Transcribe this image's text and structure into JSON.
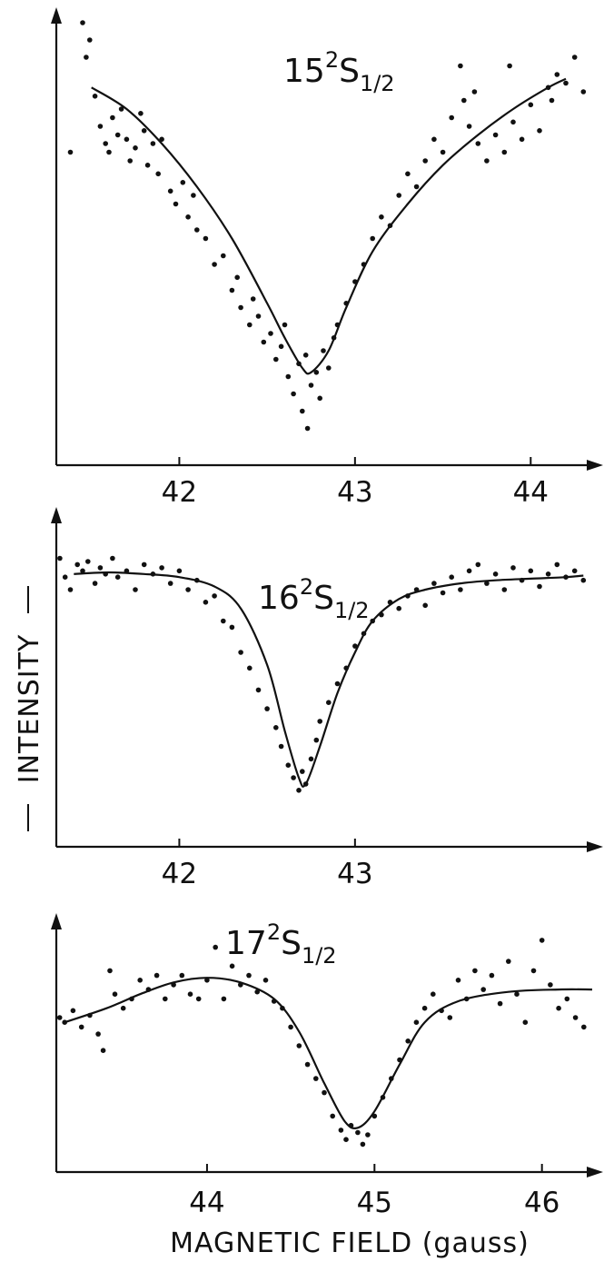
{
  "figure": {
    "ylabel": "INTENSITY",
    "xlabel": "MAGNETIC FIELD (gauss)"
  },
  "chart_data": [
    {
      "type": "scatter",
      "title": "15²S1/2",
      "title_main": "15",
      "title_sup": "2",
      "title_letter": "S",
      "title_sub": "1/2",
      "xlabel": "",
      "ylabel": "INTENSITY",
      "xlim": [
        41.3,
        44.35
      ],
      "ylim": [
        0,
        1
      ],
      "xticks": [
        42,
        43,
        44
      ],
      "xtick_labels": [
        "42",
        "43",
        "44"
      ],
      "fit_curve": {
        "x": [
          41.5,
          41.7,
          41.9,
          42.1,
          42.3,
          42.5,
          42.6,
          42.7,
          42.75,
          42.85,
          42.95,
          43.1,
          43.3,
          43.5,
          43.7,
          43.9,
          44.1,
          44.2
        ],
        "y": [
          0.85,
          0.8,
          0.72,
          0.62,
          0.5,
          0.35,
          0.27,
          0.2,
          0.19,
          0.24,
          0.34,
          0.47,
          0.58,
          0.67,
          0.74,
          0.8,
          0.85,
          0.87
        ]
      },
      "points": {
        "x": [
          41.38,
          41.45,
          41.47,
          41.49,
          41.52,
          41.55,
          41.58,
          41.6,
          41.62,
          41.65,
          41.67,
          41.7,
          41.72,
          41.75,
          41.78,
          41.8,
          41.82,
          41.85,
          41.88,
          41.9,
          41.95,
          41.98,
          42.02,
          42.05,
          42.08,
          42.1,
          42.15,
          42.2,
          42.25,
          42.3,
          42.33,
          42.35,
          42.4,
          42.42,
          42.45,
          42.48,
          42.52,
          42.55,
          42.58,
          42.6,
          42.62,
          42.65,
          42.68,
          42.7,
          42.72,
          42.73,
          42.75,
          42.78,
          42.8,
          42.82,
          42.85,
          42.88,
          42.9,
          42.95,
          43.0,
          43.05,
          43.1,
          43.15,
          43.2,
          43.25,
          43.3,
          43.35,
          43.4,
          43.45,
          43.5,
          43.55,
          43.6,
          43.62,
          43.65,
          43.68,
          43.7,
          43.75,
          43.8,
          43.85,
          43.88,
          43.9,
          43.95,
          44.0,
          44.05,
          44.1,
          44.12,
          44.15,
          44.2,
          44.25,
          44.3
        ],
        "y": [
          0.7,
          1.0,
          0.92,
          0.96,
          0.83,
          0.76,
          0.72,
          0.7,
          0.78,
          0.74,
          0.8,
          0.73,
          0.68,
          0.71,
          0.79,
          0.75,
          0.67,
          0.72,
          0.65,
          0.73,
          0.61,
          0.58,
          0.63,
          0.55,
          0.6,
          0.52,
          0.5,
          0.44,
          0.46,
          0.38,
          0.41,
          0.34,
          0.3,
          0.36,
          0.32,
          0.26,
          0.28,
          0.22,
          0.25,
          0.3,
          0.18,
          0.14,
          0.21,
          0.1,
          0.23,
          0.06,
          0.16,
          0.19,
          0.13,
          0.24,
          0.2,
          0.27,
          0.3,
          0.35,
          0.4,
          0.44,
          0.5,
          0.55,
          0.53,
          0.6,
          0.65,
          0.62,
          0.68,
          0.73,
          0.7,
          0.78,
          0.9,
          0.82,
          0.76,
          0.84,
          0.72,
          0.68,
          0.74,
          0.7,
          0.9,
          0.77,
          0.73,
          0.81,
          0.75,
          0.85,
          0.82,
          0.88,
          0.86,
          0.92,
          0.84
        ]
      }
    },
    {
      "type": "scatter",
      "title": "16²S1/2",
      "title_main": "16",
      "title_sup": "2",
      "title_letter": "S",
      "title_sub": "1/2",
      "xlabel": "",
      "ylabel": "INTENSITY",
      "xlim": [
        41.3,
        44.35
      ],
      "ylim": [
        0,
        1
      ],
      "xticks": [
        42,
        43
      ],
      "xtick_labels": [
        "42",
        "43"
      ],
      "fit_curve": {
        "x": [
          41.4,
          41.6,
          41.8,
          42.0,
          42.2,
          42.35,
          42.5,
          42.6,
          42.68,
          42.72,
          42.8,
          42.9,
          43.0,
          43.1,
          43.25,
          43.4,
          43.6,
          43.8,
          44.0,
          44.2,
          44.3
        ],
        "y": [
          0.85,
          0.855,
          0.85,
          0.84,
          0.81,
          0.74,
          0.56,
          0.35,
          0.2,
          0.18,
          0.3,
          0.47,
          0.6,
          0.7,
          0.77,
          0.8,
          0.82,
          0.83,
          0.835,
          0.84,
          0.845
        ]
      },
      "points": {
        "x": [
          41.32,
          41.35,
          41.38,
          41.42,
          41.45,
          41.48,
          41.52,
          41.55,
          41.58,
          41.62,
          41.65,
          41.7,
          41.75,
          41.8,
          41.85,
          41.9,
          41.95,
          42.0,
          42.05,
          42.1,
          42.15,
          42.2,
          42.25,
          42.3,
          42.35,
          42.4,
          42.45,
          42.5,
          42.55,
          42.58,
          42.62,
          42.65,
          42.68,
          42.7,
          42.72,
          42.75,
          42.78,
          42.8,
          42.85,
          42.9,
          42.95,
          43.0,
          43.05,
          43.1,
          43.15,
          43.2,
          43.25,
          43.3,
          43.35,
          43.4,
          43.45,
          43.5,
          43.55,
          43.6,
          43.65,
          43.7,
          43.75,
          43.8,
          43.85,
          43.9,
          43.95,
          44.0,
          44.05,
          44.1,
          44.15,
          44.2,
          44.25,
          44.3
        ],
        "y": [
          0.9,
          0.84,
          0.8,
          0.88,
          0.86,
          0.89,
          0.82,
          0.87,
          0.85,
          0.9,
          0.84,
          0.86,
          0.8,
          0.88,
          0.85,
          0.87,
          0.82,
          0.86,
          0.8,
          0.83,
          0.76,
          0.78,
          0.7,
          0.68,
          0.6,
          0.55,
          0.48,
          0.42,
          0.36,
          0.3,
          0.24,
          0.2,
          0.16,
          0.22,
          0.18,
          0.26,
          0.32,
          0.38,
          0.44,
          0.5,
          0.55,
          0.62,
          0.66,
          0.7,
          0.72,
          0.76,
          0.74,
          0.78,
          0.8,
          0.75,
          0.82,
          0.79,
          0.84,
          0.8,
          0.86,
          0.88,
          0.82,
          0.85,
          0.8,
          0.87,
          0.83,
          0.86,
          0.81,
          0.85,
          0.88,
          0.84,
          0.86,
          0.83
        ]
      }
    },
    {
      "type": "scatter",
      "title": "17²S1/2",
      "title_main": "17",
      "title_sup": "2",
      "title_letter": "S",
      "title_sub": "1/2",
      "xlabel": "MAGNETIC FIELD (gauss)",
      "ylabel": "INTENSITY",
      "xlim": [
        43.1,
        46.3
      ],
      "ylim": [
        0,
        1
      ],
      "xticks": [
        44,
        45,
        46
      ],
      "xtick_labels": [
        "44",
        "45",
        "46"
      ],
      "fit_curve": {
        "x": [
          43.15,
          43.4,
          43.6,
          43.8,
          44.0,
          44.2,
          44.4,
          44.55,
          44.7,
          44.82,
          44.9,
          45.0,
          45.15,
          45.3,
          45.5,
          45.8,
          46.1,
          46.3
        ],
        "y": [
          0.6,
          0.66,
          0.72,
          0.77,
          0.79,
          0.77,
          0.7,
          0.56,
          0.34,
          0.18,
          0.15,
          0.22,
          0.42,
          0.6,
          0.69,
          0.73,
          0.74,
          0.74
        ]
      },
      "points": {
        "x": [
          43.12,
          43.15,
          43.2,
          43.25,
          43.3,
          43.35,
          43.38,
          43.42,
          43.45,
          43.5,
          43.55,
          43.6,
          43.65,
          43.7,
          43.75,
          43.8,
          43.85,
          43.9,
          43.95,
          44.0,
          44.05,
          44.1,
          44.15,
          44.2,
          44.25,
          44.3,
          44.35,
          44.4,
          44.45,
          44.5,
          44.55,
          44.6,
          44.65,
          44.7,
          44.75,
          44.8,
          44.83,
          44.86,
          44.9,
          44.93,
          44.96,
          45.0,
          45.05,
          45.1,
          45.15,
          45.2,
          45.25,
          45.3,
          45.35,
          45.4,
          45.45,
          45.5,
          45.55,
          45.6,
          45.65,
          45.7,
          45.75,
          45.8,
          45.85,
          45.9,
          45.95,
          46.0,
          46.05,
          46.1,
          46.15,
          46.2,
          46.25
        ],
        "y": [
          0.62,
          0.6,
          0.65,
          0.58,
          0.63,
          0.55,
          0.48,
          0.82,
          0.72,
          0.66,
          0.7,
          0.78,
          0.74,
          0.8,
          0.7,
          0.76,
          0.8,
          0.72,
          0.7,
          0.78,
          0.92,
          0.7,
          0.84,
          0.76,
          0.8,
          0.73,
          0.78,
          0.69,
          0.66,
          0.58,
          0.5,
          0.42,
          0.36,
          0.3,
          0.2,
          0.14,
          0.1,
          0.16,
          0.13,
          0.08,
          0.12,
          0.2,
          0.28,
          0.36,
          0.44,
          0.52,
          0.6,
          0.66,
          0.72,
          0.65,
          0.62,
          0.78,
          0.7,
          0.82,
          0.74,
          0.8,
          0.68,
          0.86,
          0.72,
          0.6,
          0.82,
          0.95,
          0.76,
          0.66,
          0.7,
          0.62,
          0.58
        ]
      }
    }
  ]
}
